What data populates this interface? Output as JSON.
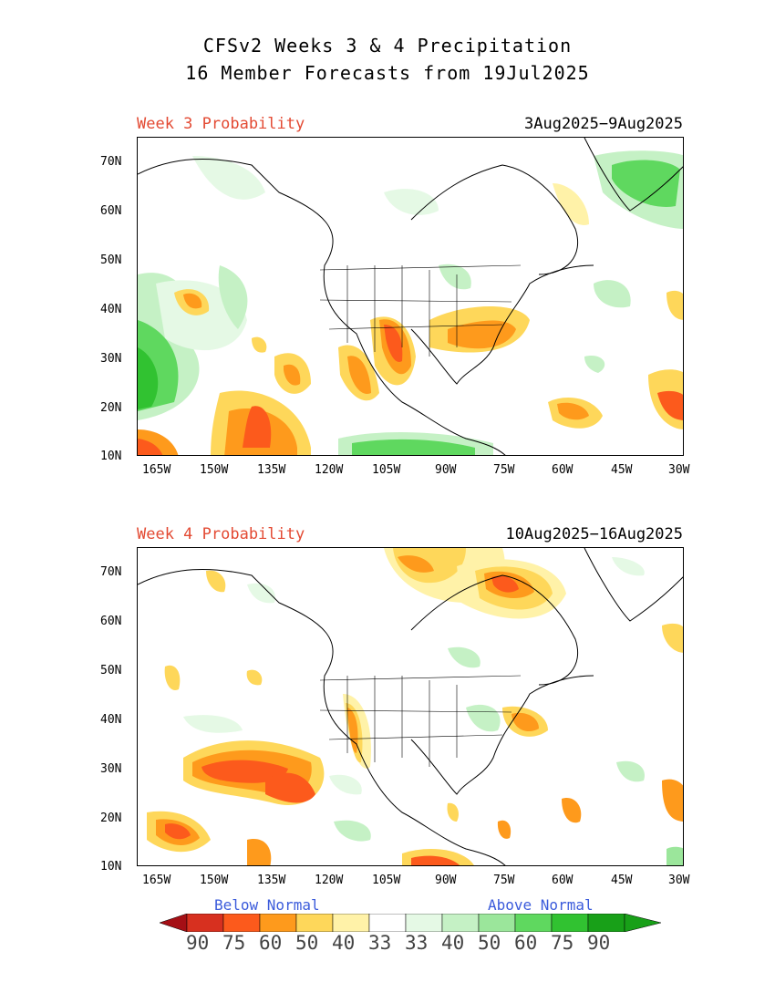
{
  "title": {
    "line1": "CFSv2 Weeks 3 & 4 Precipitation",
    "line2": "16 Member Forecasts from 19Jul2025"
  },
  "panels": [
    {
      "label": "Week 3 Probability",
      "dates": "3Aug2025−9Aug2025",
      "lat_ticks": [
        "70N",
        "60N",
        "50N",
        "40N",
        "30N",
        "20N",
        "10N"
      ],
      "lon_ticks": [
        "165W",
        "150W",
        "135W",
        "120W",
        "105W",
        "90W",
        "75W",
        "60W",
        "45W",
        "30W"
      ]
    },
    {
      "label": "Week 4 Probability",
      "dates": "10Aug2025−16Aug2025",
      "lat_ticks": [
        "70N",
        "60N",
        "50N",
        "40N",
        "30N",
        "20N",
        "10N"
      ],
      "lon_ticks": [
        "165W",
        "150W",
        "135W",
        "120W",
        "105W",
        "90W",
        "75W",
        "60W",
        "45W",
        "30W"
      ]
    }
  ],
  "legend": {
    "below_label": "Below Normal",
    "above_label": "Above Normal",
    "values": [
      "90",
      "75",
      "60",
      "50",
      "40",
      "33",
      "33",
      "40",
      "50",
      "60",
      "75",
      "90"
    ],
    "colors": {
      "below_90": "#a50f15",
      "below_75": "#d7301f",
      "below_60": "#fc5a1c",
      "below_50": "#fe9a1c",
      "below_40": "#fed75a",
      "below_33": "#fff2a8",
      "normal": "#ffffff",
      "above_33": "#e5f9e5",
      "above_40": "#c5f1c5",
      "above_50": "#9be69b",
      "above_60": "#5fd85f",
      "above_75": "#31c231",
      "above_90": "#18a018"
    }
  }
}
